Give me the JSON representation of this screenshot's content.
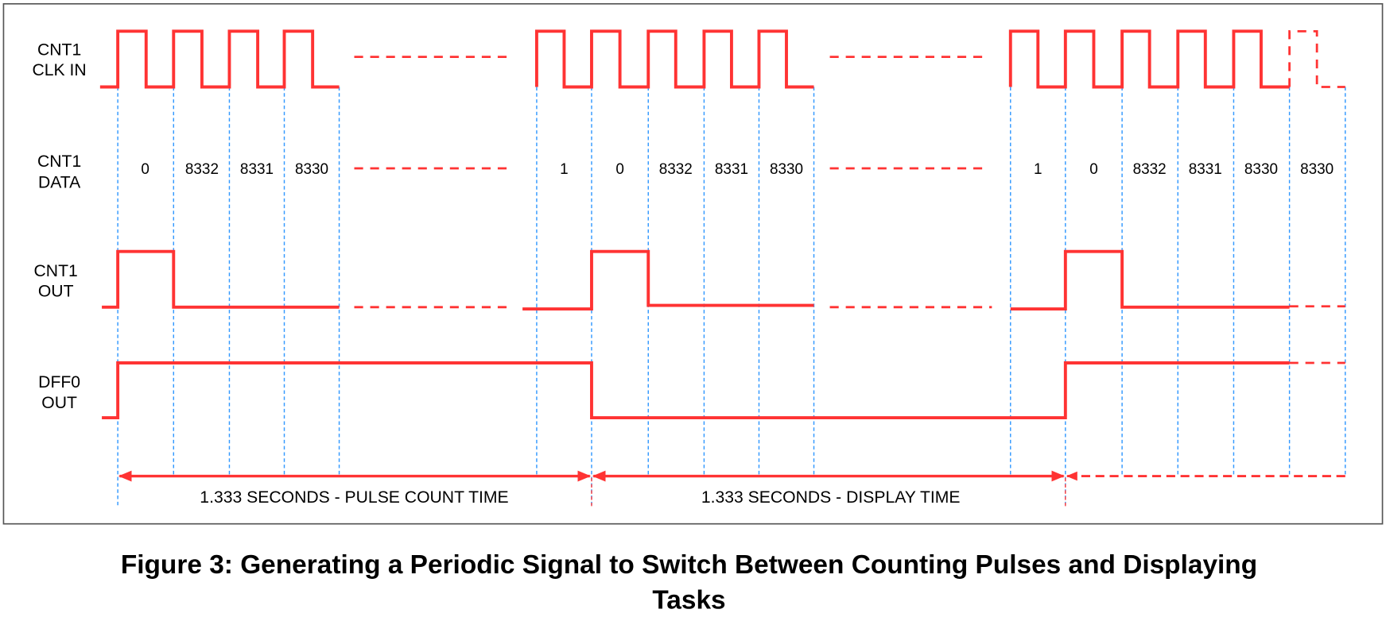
{
  "signals": [
    {
      "label_lines": [
        "CNT1",
        "CLK IN"
      ]
    },
    {
      "label_lines": [
        "CNT1",
        "DATA"
      ]
    },
    {
      "label_lines": [
        "CNT1",
        "OUT"
      ]
    },
    {
      "label_lines": [
        "DFF0",
        "OUT"
      ]
    }
  ],
  "data_values": [
    "0",
    "8332",
    "8331",
    "8330",
    "1",
    "0",
    "8332",
    "8331",
    "8330",
    "1",
    "0",
    "8332",
    "8331",
    "8330",
    "8330"
  ],
  "time_labels": [
    "1.333 SECONDS - PULSE COUNT TIME",
    "1.333 SECONDS - DISPLAY TIME"
  ],
  "caption_lines": [
    "Figure 3: Generating a Periodic Signal to Switch Between Counting Pulses and Displaying",
    "Tasks"
  ]
}
